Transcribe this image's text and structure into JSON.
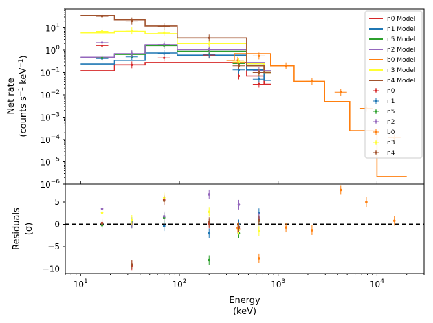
{
  "chart_data": [
    {
      "type": "line",
      "panel": "top",
      "ylabel_line1": "Net rate",
      "ylabel_line2": "(counts s",
      "ylabel_sup1": "−1",
      "ylabel_mid": " keV",
      "ylabel_sup2": "−1",
      "ylabel_end": ")",
      "xscale": "log",
      "yscale": "log",
      "xlim": [
        7,
        30000
      ],
      "ylim": [
        1e-06,
        70
      ],
      "y_tick_base": "10",
      "y_tick_exponents": [
        "−6",
        "−5",
        "−4",
        "−3",
        "−2",
        "−1",
        "0",
        "1"
      ],
      "legend_position": "top-right",
      "series": [
        {
          "name": "n0 Model",
          "color": "#d62728",
          "model_steps": [
            [
              10,
              0.12
            ],
            [
              22,
              0.22
            ],
            [
              45,
              0.28
            ],
            [
              95,
              0.28
            ],
            [
              480,
              0.07
            ],
            [
              720,
              0.03
            ],
            [
              850,
              0.03
            ]
          ],
          "points": [
            [
              16.5,
              1.6
            ],
            [
              33,
              0.22
            ],
            [
              70,
              0.45
            ],
            [
              200,
              0.6
            ],
            [
              400,
              0.07
            ],
            [
              640,
              0.03
            ]
          ]
        },
        {
          "name": "n1 Model",
          "color": "#1f77b4",
          "model_steps": [
            [
              10,
              0.24
            ],
            [
              22,
              0.35
            ],
            [
              45,
              0.75
            ],
            [
              95,
              0.6
            ],
            [
              480,
              0.13
            ],
            [
              720,
              0.045
            ],
            [
              850,
              0.045
            ]
          ],
          "points": [
            [
              16.5,
              0.42
            ],
            [
              33,
              0.5
            ],
            [
              70,
              0.7
            ],
            [
              200,
              0.65
            ],
            [
              400,
              0.13
            ],
            [
              640,
              0.05
            ]
          ]
        },
        {
          "name": "n5 Model",
          "color": "#2ca02c",
          "model_steps": [
            [
              10,
              0.45
            ],
            [
              22,
              0.65
            ],
            [
              45,
              1.6
            ],
            [
              95,
              0.9
            ],
            [
              480,
              0.25
            ],
            [
              720,
              0.1
            ],
            [
              850,
              0.1
            ]
          ],
          "points": [
            [
              16.5,
              0.45
            ],
            [
              33,
              0.65
            ],
            [
              70,
              1.6
            ],
            [
              200,
              0.9
            ],
            [
              400,
              0.25
            ],
            [
              640,
              0.1
            ]
          ]
        },
        {
          "name": "n2 Model",
          "color": "#9467bd",
          "model_steps": [
            [
              10,
              0.48
            ],
            [
              22,
              0.7
            ],
            [
              45,
              1.75
            ],
            [
              95,
              1.05
            ],
            [
              480,
              0.28
            ],
            [
              720,
              0.12
            ],
            [
              850,
              0.12
            ]
          ],
          "points": [
            [
              16.5,
              2.2
            ],
            [
              33,
              0.7
            ],
            [
              70,
              1.8
            ],
            [
              200,
              1.1
            ],
            [
              400,
              0.3
            ],
            [
              640,
              0.12
            ]
          ]
        },
        {
          "name": "b0 Model",
          "color": "#ff7f0e",
          "model_steps": [
            [
              300,
              0.35
            ],
            [
              360,
              0.7
            ],
            [
              840,
              0.2
            ],
            [
              1450,
              0.04
            ],
            [
              2950,
              0.005
            ],
            [
              5300,
              0.00025
            ],
            [
              10000,
              2.2e-06
            ],
            [
              20000,
              2.2e-06
            ]
          ],
          "points": [
            [
              390,
              0.35
            ],
            [
              640,
              0.55
            ],
            [
              1200,
              0.2
            ],
            [
              2200,
              0.04
            ],
            [
              4300,
              0.013
            ],
            [
              7800,
              0.0025
            ],
            [
              15000,
              0.00012
            ]
          ]
        },
        {
          "name": "n3 Model",
          "color": "#ffff33",
          "model_steps": [
            [
              10,
              6.0
            ],
            [
              22,
              7.0
            ],
            [
              45,
              5.5
            ],
            [
              95,
              2.0
            ],
            [
              480,
              0.25
            ],
            [
              720,
              0.1
            ],
            [
              850,
              0.1
            ]
          ],
          "points": [
            [
              16.5,
              7.0
            ],
            [
              33,
              7.2
            ],
            [
              70,
              6.2
            ],
            [
              200,
              2.0
            ],
            [
              400,
              0.3
            ],
            [
              640,
              0.1
            ]
          ]
        },
        {
          "name": "n4 Model",
          "color": "#a0522d",
          "model_steps": [
            [
              10,
              35
            ],
            [
              22,
              23
            ],
            [
              45,
              12
            ],
            [
              95,
              3.5
            ],
            [
              480,
              0.2
            ],
            [
              720,
              0.1
            ],
            [
              850,
              0.1
            ]
          ],
          "points": [
            [
              16.5,
              32
            ],
            [
              33,
              20
            ],
            [
              70,
              11.5
            ],
            [
              200,
              3.5
            ],
            [
              400,
              0.2
            ],
            [
              640,
              0.1
            ]
          ]
        }
      ],
      "points_legend": [
        "n0",
        "n1",
        "n5",
        "n2",
        "b0",
        "n3",
        "n4"
      ]
    },
    {
      "type": "scatter",
      "panel": "bottom",
      "xlabel_line1": "Energy",
      "xlabel_line2": "(keV)",
      "ylabel_line1": "Residuals",
      "ylabel_line2": "(σ)",
      "xscale": "log",
      "xlim": [
        7,
        30000
      ],
      "ylim": [
        -11,
        9
      ],
      "y_ticks": [
        -10,
        -5,
        0,
        5
      ],
      "x_tick_base": "10",
      "x_tick_exponents": [
        "1",
        "2",
        "3",
        "4"
      ],
      "zero_line": "dashed",
      "series": [
        {
          "name": "n0",
          "color": "#d62728",
          "points": [
            [
              16.5,
              0.3
            ],
            [
              33,
              -9.2
            ],
            [
              70,
              5.5
            ],
            [
              200,
              0.2
            ],
            [
              400,
              -1.0
            ],
            [
              640,
              1.2
            ]
          ]
        },
        {
          "name": "n1",
          "color": "#1f77b4",
          "points": [
            [
              16.5,
              0.0
            ],
            [
              33,
              0.5
            ],
            [
              70,
              -0.4
            ],
            [
              200,
              -2.0
            ],
            [
              400,
              0.0
            ],
            [
              640,
              2.5
            ]
          ]
        },
        {
          "name": "n5",
          "color": "#2ca02c",
          "points": [
            [
              16.5,
              -0.2
            ],
            [
              33,
              0.2
            ],
            [
              70,
              1.5
            ],
            [
              200,
              -8.0
            ],
            [
              400,
              -2.0
            ],
            [
              640,
              0.8
            ]
          ]
        },
        {
          "name": "n2",
          "color": "#9467bd",
          "points": [
            [
              16.5,
              3.5
            ],
            [
              33,
              0.2
            ],
            [
              70,
              1.8
            ],
            [
              200,
              6.7
            ],
            [
              400,
              4.4
            ],
            [
              640,
              1.5
            ]
          ]
        },
        {
          "name": "b0",
          "color": "#ff7f0e",
          "points": [
            [
              390,
              -0.8
            ],
            [
              640,
              -7.6
            ],
            [
              1200,
              -0.7
            ],
            [
              2200,
              -1.3
            ],
            [
              4300,
              7.7
            ],
            [
              7800,
              5.0
            ],
            [
              15000,
              0.8
            ]
          ]
        },
        {
          "name": "n3",
          "color": "#ffff33",
          "points": [
            [
              16.5,
              2.6
            ],
            [
              33,
              1.0
            ],
            [
              70,
              6.0
            ],
            [
              200,
              2.8
            ],
            [
              400,
              -1.2
            ],
            [
              640,
              -1.5
            ]
          ]
        },
        {
          "name": "n4",
          "color": "#a0522d",
          "points": [
            [
              16.5,
              0.2
            ],
            [
              33,
              -9.0
            ],
            [
              70,
              5.3
            ],
            [
              200,
              0.5
            ],
            [
              400,
              -0.6
            ],
            [
              640,
              0.9
            ]
          ]
        }
      ]
    }
  ]
}
